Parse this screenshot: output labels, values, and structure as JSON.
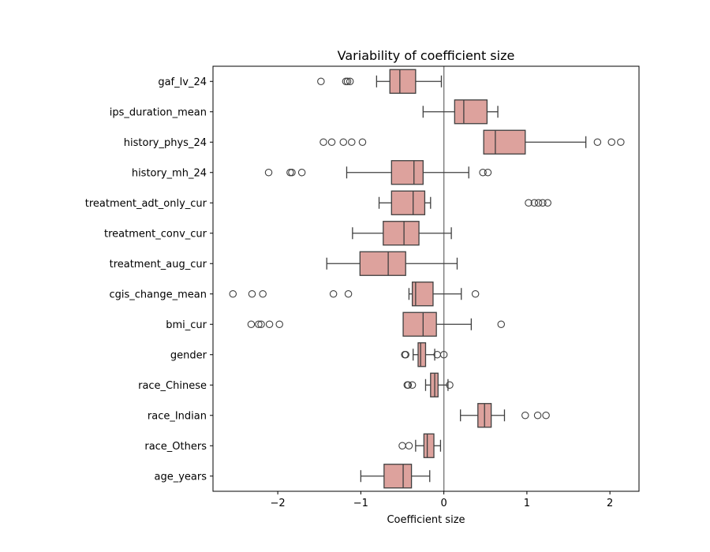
{
  "chart_data": {
    "type": "box",
    "orientation": "horizontal",
    "title": "Variability of coefficient size",
    "xlabel": "Coefficient size",
    "ylabel": "",
    "xlim": [
      -2.78,
      2.35
    ],
    "xticks": [
      -2,
      -1,
      0,
      1,
      2
    ],
    "xtick_labels": [
      "−2",
      "−1",
      "0",
      "1",
      "2"
    ],
    "reference_line": 0,
    "grid": false,
    "box_color": "#DDA29D",
    "edge_color": "#3F3F3F",
    "variables": [
      {
        "name": "gaf_lv_24",
        "whisker_low": -0.81,
        "q1": -0.65,
        "median": -0.53,
        "q3": -0.34,
        "whisker_high": -0.03,
        "outliers": [
          -1.48,
          -1.18,
          -1.16,
          -1.13
        ]
      },
      {
        "name": "ips_duration_mean",
        "whisker_low": -0.25,
        "q1": 0.13,
        "median": 0.24,
        "q3": 0.52,
        "whisker_high": 0.65,
        "outliers": []
      },
      {
        "name": "history_phys_24",
        "whisker_low": null,
        "q1": 0.48,
        "median": 0.62,
        "q3": 0.98,
        "whisker_high": 1.71,
        "outliers": [
          -1.45,
          -1.35,
          -1.21,
          -1.11,
          -0.98,
          1.85,
          2.02,
          2.13
        ]
      },
      {
        "name": "history_mh_24",
        "whisker_low": -1.17,
        "q1": -0.63,
        "median": -0.36,
        "q3": -0.25,
        "whisker_high": 0.3,
        "outliers": [
          -2.11,
          -1.85,
          -1.83,
          -1.71,
          0.47,
          0.53
        ]
      },
      {
        "name": "treatment_adt_only_cur",
        "whisker_low": -0.78,
        "q1": -0.63,
        "median": -0.37,
        "q3": -0.23,
        "whisker_high": -0.16,
        "outliers": [
          1.02,
          1.09,
          1.14,
          1.19,
          1.25
        ]
      },
      {
        "name": "treatment_conv_cur",
        "whisker_low": -1.1,
        "q1": -0.73,
        "median": -0.48,
        "q3": -0.3,
        "whisker_high": 0.09,
        "outliers": []
      },
      {
        "name": "treatment_aug_cur",
        "whisker_low": -1.41,
        "q1": -1.01,
        "median": -0.67,
        "q3": -0.46,
        "whisker_high": 0.16,
        "outliers": []
      },
      {
        "name": "cgis_change_mean",
        "whisker_low": -0.42,
        "q1": -0.38,
        "median": -0.34,
        "q3": -0.13,
        "whisker_high": 0.21,
        "outliers": [
          -2.54,
          -2.31,
          -2.18,
          -1.33,
          -1.15,
          0.38
        ]
      },
      {
        "name": "bmi_cur",
        "whisker_low": null,
        "q1": -0.49,
        "median": -0.25,
        "q3": -0.09,
        "whisker_high": 0.33,
        "outliers": [
          -2.32,
          -2.23,
          -2.2,
          -2.1,
          -1.98,
          0.69
        ]
      },
      {
        "name": "gender",
        "whisker_low": -0.37,
        "q1": -0.31,
        "median": -0.28,
        "q3": -0.22,
        "whisker_high": -0.11,
        "outliers": [
          -0.47,
          -0.46,
          -0.08,
          0.0
        ]
      },
      {
        "name": "race_Chinese",
        "whisker_low": -0.22,
        "q1": -0.16,
        "median": -0.11,
        "q3": -0.07,
        "whisker_high": 0.05,
        "outliers": [
          -0.44,
          -0.43,
          -0.38,
          0.07
        ]
      },
      {
        "name": "race_Indian",
        "whisker_low": 0.2,
        "q1": 0.41,
        "median": 0.49,
        "q3": 0.57,
        "whisker_high": 0.73,
        "outliers": [
          0.98,
          1.13,
          1.23
        ]
      },
      {
        "name": "race_Others",
        "whisker_low": -0.34,
        "q1": -0.24,
        "median": -0.2,
        "q3": -0.12,
        "whisker_high": -0.04,
        "outliers": [
          -0.5,
          -0.42
        ]
      },
      {
        "name": "age_years",
        "whisker_low": -1.0,
        "q1": -0.72,
        "median": -0.49,
        "q3": -0.39,
        "whisker_high": -0.17,
        "outliers": []
      }
    ]
  }
}
